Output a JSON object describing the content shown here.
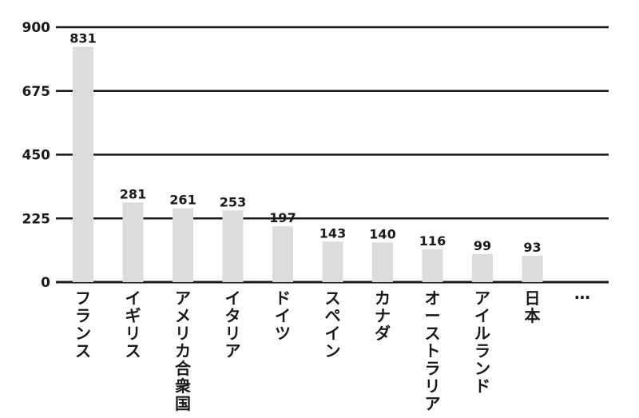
{
  "chart_data": {
    "type": "bar",
    "categories": [
      "フランス",
      "イギリス",
      "アメリカ合衆国",
      "イタリア",
      "ドイツ",
      "スペイン",
      "カナダ",
      "オーストラリア",
      "アイルランド",
      "日本",
      "…"
    ],
    "values": [
      831,
      281,
      261,
      253,
      197,
      143,
      140,
      116,
      99,
      93,
      null
    ],
    "value_labels": [
      "831",
      "281",
      "261",
      "253",
      "197",
      "143",
      "140",
      "116",
      "99",
      "93",
      ""
    ],
    "yticks": [
      "0",
      "225",
      "450",
      "675",
      "900"
    ],
    "ylim": [
      0,
      900
    ],
    "grid": true,
    "title": "",
    "xlabel": "",
    "ylabel": ""
  },
  "colors": {
    "bar": "#dcdcdc",
    "grid": "#1a1a1a",
    "text": "#1a1a1a"
  }
}
